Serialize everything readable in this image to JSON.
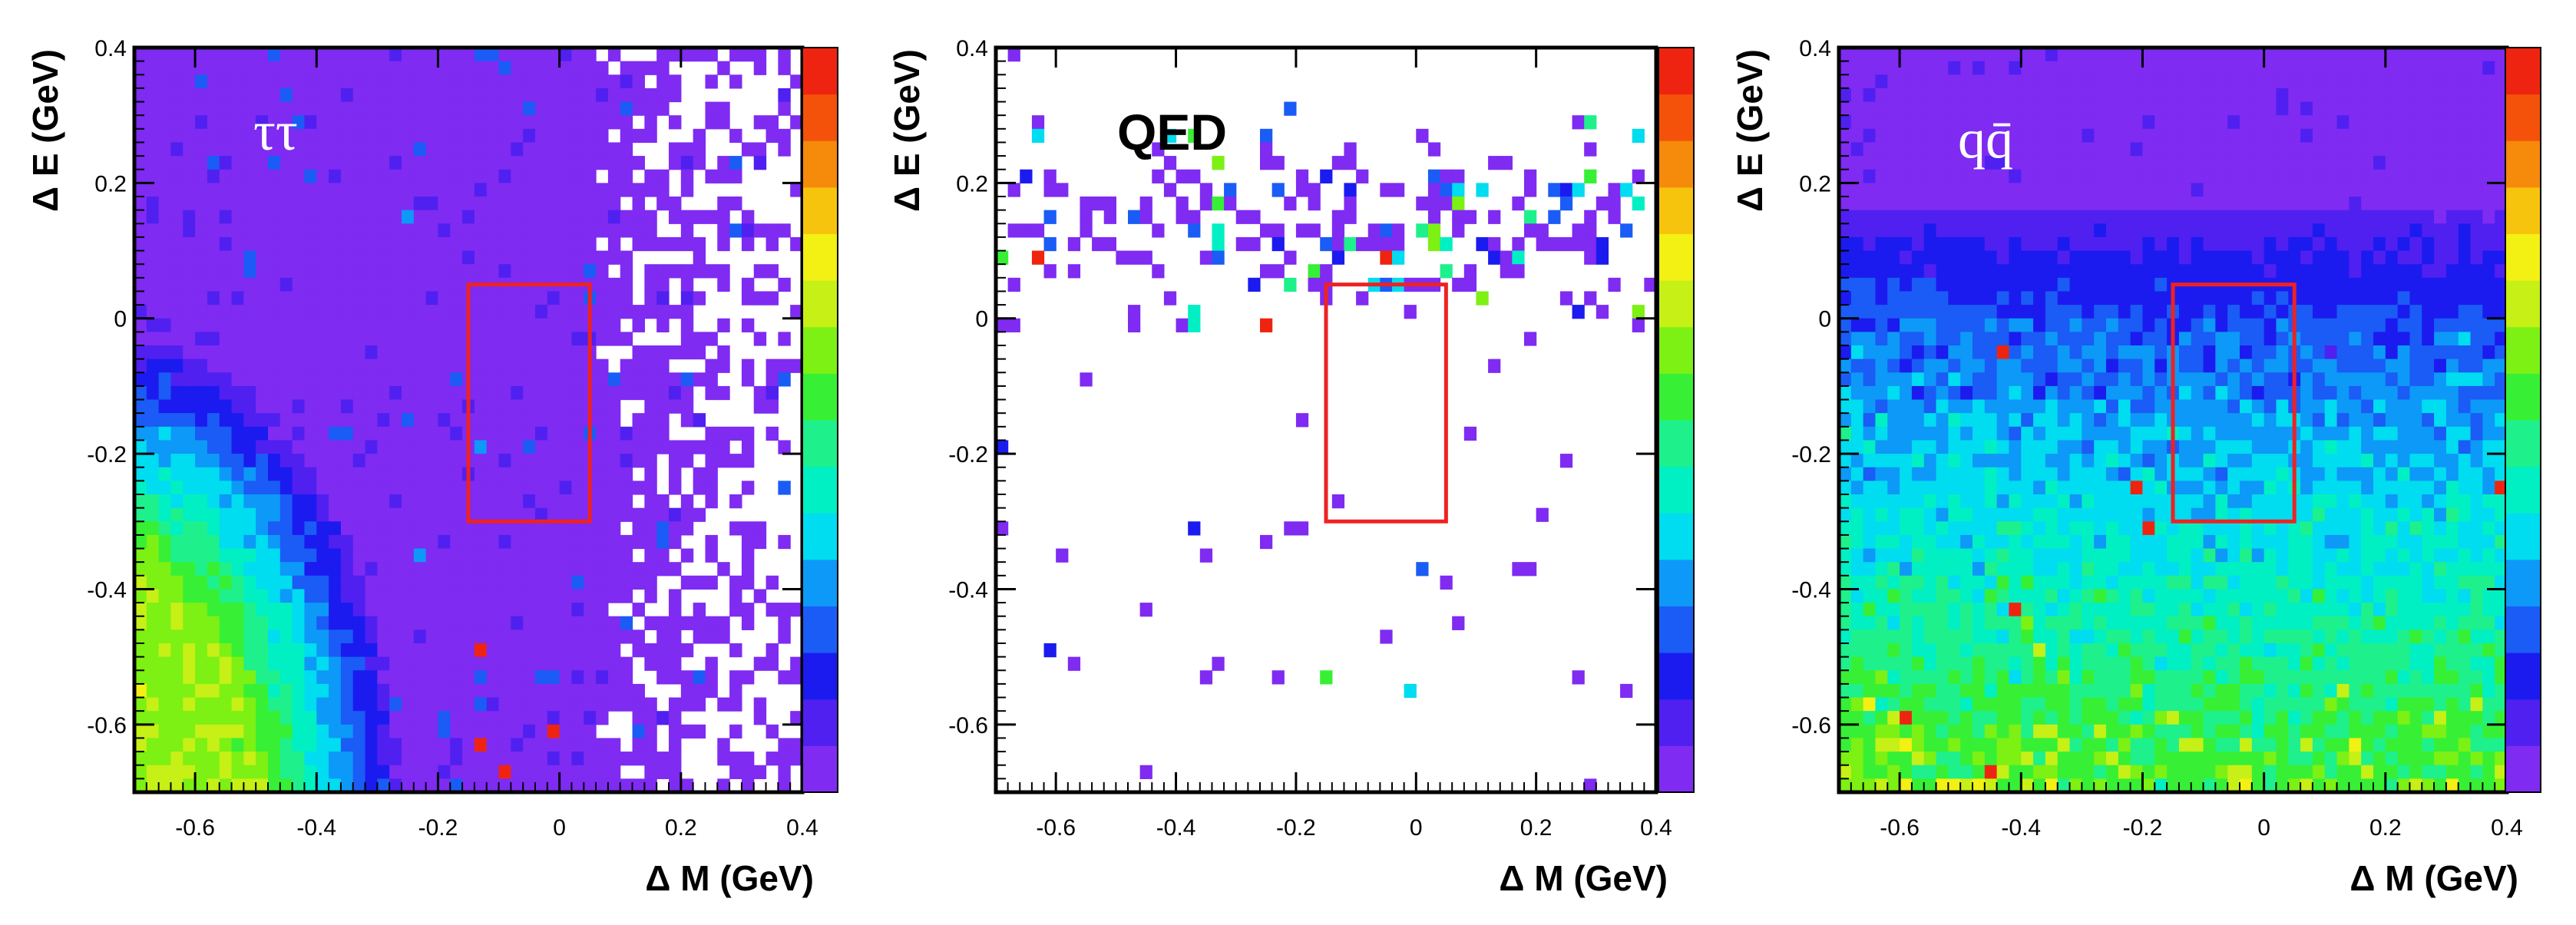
{
  "chart_data": [
    {
      "type": "heatmap",
      "panel": "tautau",
      "label": "ττ",
      "label_style": "serif-white",
      "xlabel": "Δ M (GeV)",
      "ylabel": "Δ E (GeV)",
      "xlim": [
        -0.7,
        0.4
      ],
      "ylim": [
        -0.7,
        0.4
      ],
      "xticks": [
        "-0.6",
        "-0.4",
        "-0.2",
        "0",
        "0.2",
        "0.4"
      ],
      "yticks": [
        "0.4",
        "0.2",
        "0",
        "-0.2",
        "-0.4",
        "-0.6"
      ],
      "signal_box": {
        "dm": [
          -0.15,
          0.05
        ],
        "de": [
          -0.3,
          0.05
        ]
      },
      "bins": [
        55,
        55
      ],
      "distribution": "dense-corner-low-dm-low-de",
      "hot_cells": [
        {
          "dm": -0.125,
          "de": -0.49
        },
        {
          "dm": -0.125,
          "de": -0.63
        },
        {
          "dm": -0.005,
          "de": -0.61
        },
        {
          "dm": -0.085,
          "de": -0.67
        }
      ]
    },
    {
      "type": "heatmap",
      "panel": "qed",
      "label": "QED",
      "label_style": "sans-bold-black",
      "xlabel": "Δ M (GeV)",
      "ylabel": "Δ E (GeV)",
      "xlim": [
        -0.7,
        0.4
      ],
      "ylim": [
        -0.7,
        0.4
      ],
      "xticks": [
        "-0.6",
        "-0.4",
        "-0.2",
        "0",
        "0.2",
        "0.4"
      ],
      "yticks": [
        "0.4",
        "0.2",
        "0",
        "-0.2",
        "-0.4",
        "-0.6"
      ],
      "signal_box": {
        "dm": [
          -0.15,
          0.05
        ],
        "de": [
          -0.3,
          0.05
        ]
      },
      "bins": [
        55,
        55
      ],
      "distribution": "sparse-band-near-de-0.1",
      "hot_cells": [
        {
          "dm": -0.245,
          "de": 0.0
        },
        {
          "dm": -0.045,
          "de": 0.09
        },
        {
          "dm": -0.625,
          "de": 0.09
        }
      ]
    },
    {
      "type": "heatmap",
      "panel": "qqbar",
      "label": "qq̄",
      "label_style": "serif-white",
      "xlabel": "Δ M (GeV)",
      "ylabel": "Δ E (GeV)",
      "xlim": [
        -0.7,
        0.4
      ],
      "ylim": [
        -0.7,
        0.4
      ],
      "xticks": [
        "-0.6",
        "-0.4",
        "-0.2",
        "0",
        "0.2",
        "0.4"
      ],
      "yticks": [
        "0.4",
        "0.2",
        "0",
        "-0.2",
        "-0.4",
        "-0.6"
      ],
      "signal_box": {
        "dm": [
          -0.15,
          0.05
        ],
        "de": [
          -0.3,
          0.05
        ]
      },
      "bins": [
        55,
        55
      ],
      "distribution": "gradient-increasing-toward-low-de",
      "hot_cells": [
        {
          "dm": -0.43,
          "de": -0.05
        },
        {
          "dm": -0.21,
          "de": -0.25
        },
        {
          "dm": -0.415,
          "de": -0.43
        },
        {
          "dm": -0.585,
          "de": -0.59
        },
        {
          "dm": -0.455,
          "de": -0.66
        },
        {
          "dm": 0.385,
          "de": -0.25
        },
        {
          "dm": -0.185,
          "de": -0.31
        }
      ]
    }
  ],
  "colors": {
    "palette": [
      "#7f2bf2",
      "#5020f0",
      "#1b1bf0",
      "#1a5cf5",
      "#0d99f7",
      "#00dcf0",
      "#00f0c4",
      "#1ef08c",
      "#37f035",
      "#7df014",
      "#c6f016",
      "#f3f013",
      "#f7c40d",
      "#f68a0b",
      "#f4520a",
      "#ef2410"
    ],
    "signal_box": "#ee2222"
  }
}
